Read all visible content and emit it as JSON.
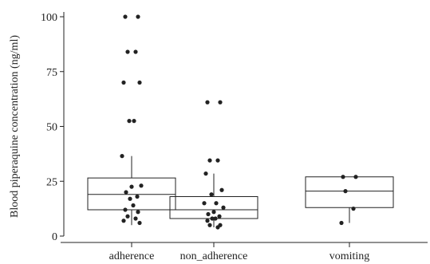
{
  "chart_data": {
    "type": "box",
    "ylabel": "Blood piperaquine concentration (ng/ml)",
    "xlabel": "",
    "ylim": [
      0,
      100
    ],
    "yticks": [
      0,
      25,
      50,
      75,
      100
    ],
    "categories": [
      "adherence",
      "non_adherence",
      "vomiting"
    ],
    "boxes": [
      {
        "category": "adherence",
        "q1": 12,
        "median": 19,
        "q3": 26.5,
        "whisker_low": 5,
        "whisker_high": 36.5
      },
      {
        "category": "non_adherence",
        "q1": 8,
        "median": 12,
        "q3": 18,
        "whisker_low": 4,
        "whisker_high": 28.5
      },
      {
        "category": "vomiting",
        "q1": 13,
        "median": 20.5,
        "q3": 27,
        "whisker_low": 6,
        "whisker_high": 27
      }
    ],
    "points": [
      {
        "category": "adherence",
        "values": [
          100,
          100,
          84,
          84,
          70,
          70,
          52.5,
          52.5,
          36.5,
          23,
          22.5,
          20,
          18,
          17,
          14,
          12,
          11,
          9,
          8,
          7,
          6
        ]
      },
      {
        "category": "non_adherence",
        "values": [
          61,
          61,
          34.5,
          34.5,
          28.5,
          21,
          19,
          15,
          15,
          13,
          11,
          10,
          9,
          8,
          8,
          7,
          5,
          5,
          4
        ]
      },
      {
        "category": "vomiting",
        "values": [
          27,
          27,
          20.5,
          12.5,
          6
        ]
      }
    ]
  }
}
